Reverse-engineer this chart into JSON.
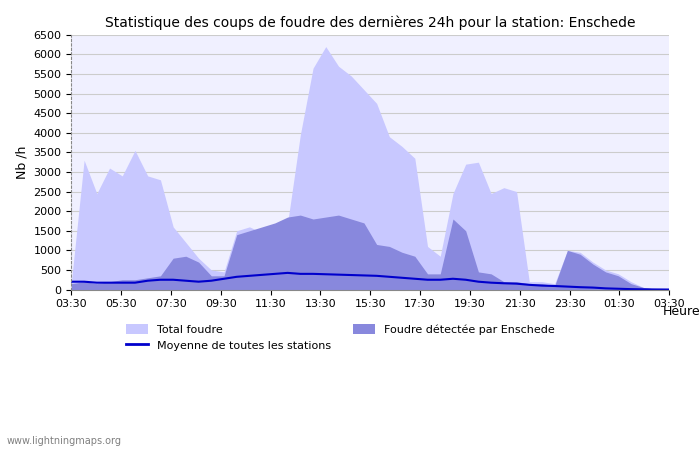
{
  "title": "Statistique des coups de foudre des dernières 24h pour la station: Enschede",
  "xlabel": "Heure",
  "ylabel": "Nb /h",
  "ylim": [
    0,
    6500
  ],
  "yticks": [
    0,
    500,
    1000,
    1500,
    2000,
    2500,
    3000,
    3500,
    4000,
    4500,
    5000,
    5500,
    6000,
    6500
  ],
  "xtick_labels": [
    "03:30",
    "05:30",
    "07:30",
    "09:30",
    "11:30",
    "13:30",
    "15:30",
    "17:30",
    "19:30",
    "21:30",
    "23:30",
    "01:30",
    "03:30"
  ],
  "background_color": "#f0f0ff",
  "grid_color": "#cccccc",
  "color_total": "#c8c8ff",
  "color_detected": "#8888dd",
  "color_mean": "#0000cc",
  "watermark": "www.lightningmaps.org",
  "total_foudre": [
    200,
    3300,
    2450,
    3100,
    2900,
    3550,
    2900,
    2800,
    1600,
    1200,
    800,
    500,
    450,
    1500,
    1600,
    1450,
    1550,
    1700,
    3950,
    5650,
    6200,
    5700,
    5450,
    5100,
    4750,
    3900,
    3650,
    3350,
    1100,
    850,
    2450,
    3200,
    3250,
    2450,
    2600,
    2500,
    200,
    200,
    150,
    1000,
    950,
    700,
    500,
    400,
    200,
    50,
    10,
    0
  ],
  "detected_enschede": [
    150,
    200,
    150,
    200,
    250,
    250,
    300,
    350,
    800,
    850,
    700,
    350,
    350,
    1400,
    1500,
    1600,
    1700,
    1850,
    1900,
    1800,
    1850,
    1900,
    1800,
    1700,
    1150,
    1100,
    950,
    850,
    400,
    400,
    1800,
    1500,
    450,
    400,
    200,
    200,
    150,
    150,
    100,
    1000,
    900,
    650,
    450,
    350,
    150,
    50,
    10,
    0
  ],
  "mean_stations": [
    200,
    200,
    175,
    175,
    175,
    175,
    225,
    250,
    250,
    225,
    200,
    225,
    275,
    325,
    350,
    375,
    400,
    425,
    400,
    400,
    390,
    380,
    370,
    360,
    350,
    325,
    300,
    275,
    250,
    250,
    275,
    250,
    200,
    175,
    160,
    150,
    120,
    100,
    90,
    75,
    60,
    50,
    30,
    20,
    10,
    5,
    2,
    0
  ]
}
